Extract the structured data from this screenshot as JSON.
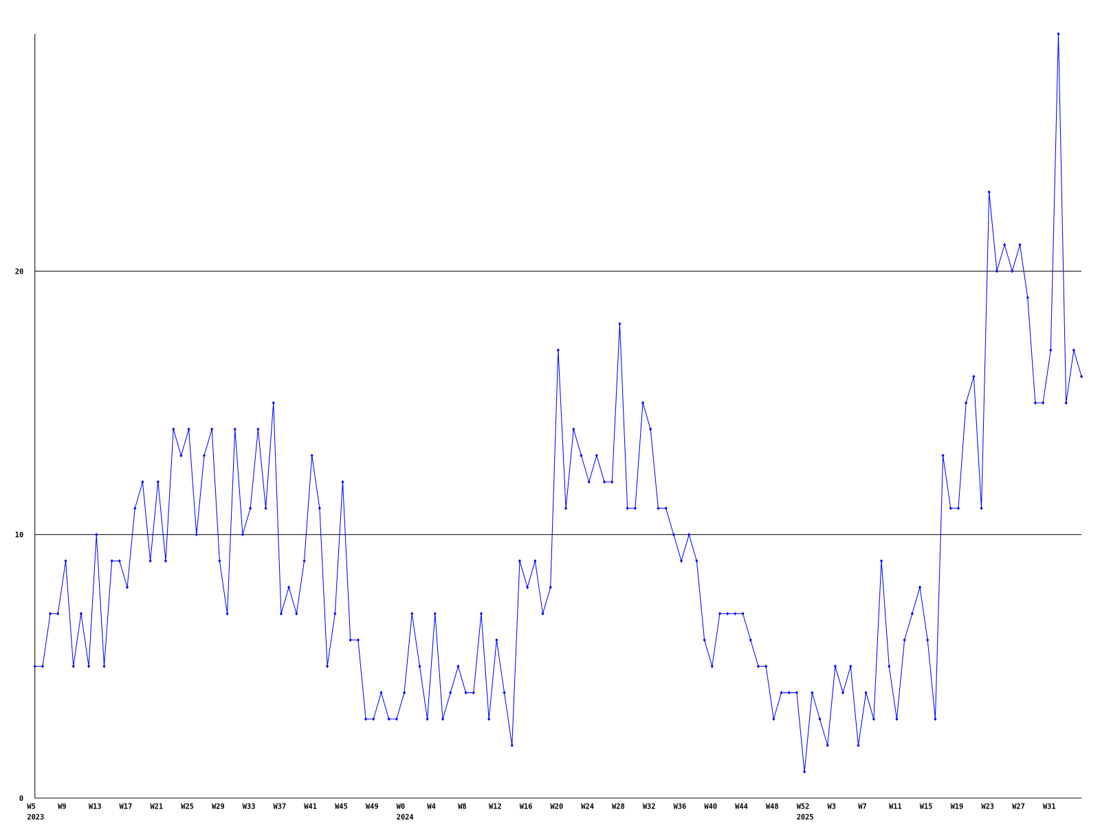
{
  "chart_data": {
    "type": "line",
    "categories": [
      "W5",
      null,
      null,
      null,
      "W9",
      null,
      null,
      null,
      "W13",
      null,
      null,
      null,
      "W17",
      null,
      null,
      null,
      "W21",
      null,
      null,
      null,
      "W25",
      null,
      null,
      null,
      "W29",
      null,
      null,
      null,
      "W33",
      null,
      null,
      null,
      "W37",
      null,
      null,
      null,
      "W41",
      null,
      null,
      null,
      "W45",
      null,
      null,
      null,
      "W49",
      null,
      null,
      null,
      "W0",
      null,
      null,
      null,
      "W4",
      null,
      null,
      null,
      "W8",
      null,
      null,
      null,
      "W12",
      null,
      null,
      null,
      "W16",
      null,
      null,
      null,
      "W20",
      null,
      null,
      null,
      "W24",
      null,
      null,
      null,
      "W28",
      null,
      null,
      null,
      "W32",
      null,
      null,
      null,
      "W36",
      null,
      null,
      null,
      "W40",
      null,
      null,
      null,
      "W44",
      null,
      null,
      null,
      "W48",
      null,
      null,
      null,
      "W52",
      null,
      null,
      null,
      "W3",
      null,
      null,
      null,
      "W7",
      null,
      null,
      null,
      "W11",
      null,
      null,
      null,
      "W15",
      null,
      null,
      null,
      "W19",
      null,
      null,
      null,
      "W23",
      null,
      null,
      null,
      "W27",
      null,
      null,
      null,
      "W31",
      null,
      null,
      null,
      null
    ],
    "x_year_labels": [
      "2023",
      null,
      null,
      null,
      null,
      null,
      null,
      null,
      null,
      null,
      null,
      null,
      null,
      null,
      null,
      null,
      null,
      null,
      null,
      null,
      null,
      null,
      null,
      null,
      null,
      null,
      null,
      null,
      null,
      null,
      null,
      null,
      null,
      null,
      null,
      null,
      null,
      null,
      null,
      null,
      null,
      null,
      null,
      null,
      null,
      null,
      null,
      null,
      "2024",
      null,
      null,
      null,
      null,
      null,
      null,
      null,
      null,
      null,
      null,
      null,
      null,
      null,
      null,
      null,
      null,
      null,
      null,
      null,
      null,
      null,
      null,
      null,
      null,
      null,
      null,
      null,
      null,
      null,
      null,
      null,
      null,
      null,
      null,
      null,
      null,
      null,
      null,
      null,
      null,
      null,
      null,
      null,
      null,
      null,
      null,
      null,
      null,
      null,
      null,
      null,
      "2025",
      null,
      null,
      null,
      null,
      null,
      null,
      null,
      null,
      null,
      null,
      null,
      null,
      null,
      null,
      null,
      null,
      null,
      null,
      null,
      null,
      null,
      null,
      null,
      null,
      null,
      null,
      null,
      null,
      null,
      null,
      null,
      null,
      null,
      null,
      null,
      null
    ],
    "series": [
      {
        "color": "#0000ff",
        "values": [
          5,
          5,
          7,
          7,
          9,
          5,
          7,
          5,
          10,
          5,
          9,
          9,
          8,
          11,
          12,
          9,
          12,
          9,
          14,
          13,
          14,
          10,
          13,
          14,
          9,
          7,
          14,
          10,
          11,
          14,
          11,
          15,
          7,
          8,
          7,
          9,
          13,
          11,
          5,
          7,
          12,
          6,
          6,
          3,
          3,
          4,
          3,
          3,
          4,
          7,
          5,
          3,
          7,
          3,
          4,
          5,
          4,
          4,
          7,
          3,
          6,
          4,
          2,
          9,
          8,
          9,
          7,
          8,
          17,
          11,
          14,
          13,
          12,
          13,
          12,
          12,
          18,
          11,
          11,
          15,
          14,
          11,
          11,
          10,
          9,
          10,
          9,
          6,
          5,
          7,
          7,
          7,
          7,
          6,
          5,
          5,
          3,
          4,
          4,
          4,
          1,
          4,
          3,
          2,
          5,
          4,
          5,
          2,
          4,
          3,
          9,
          5,
          3,
          6,
          7,
          8,
          6,
          3,
          13,
          11,
          11,
          15,
          16,
          11,
          23,
          20,
          21,
          20,
          21,
          19,
          15,
          15,
          17,
          29,
          15,
          17,
          16
        ]
      }
    ],
    "ylim": [
      0,
      29
    ],
    "yticks": [
      0,
      10,
      20
    ],
    "grid": true
  }
}
